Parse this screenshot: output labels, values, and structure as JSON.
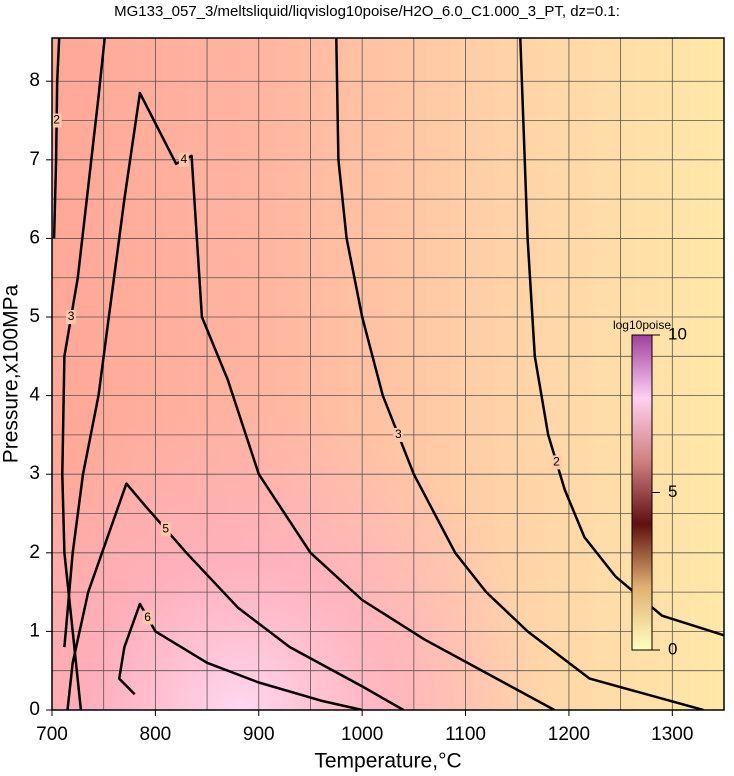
{
  "chart_data": {
    "type": "contour",
    "title": "MG133_057_3/meltsliquid/liqvislog10poise/H2O_6.0_C1.000_3_PT, dz=0.1:",
    "xlabel": "Temperature,°C",
    "ylabel": "Pressure,x100MPa",
    "xlim": [
      700,
      1350
    ],
    "ylim": [
      0,
      8.55
    ],
    "xticks": [
      700,
      800,
      900,
      1000,
      1100,
      1200,
      1300
    ],
    "yticks": [
      0,
      1,
      2,
      3,
      4,
      5,
      6,
      7,
      8
    ],
    "xminor": [
      750,
      850,
      950,
      1050,
      1150,
      1250
    ],
    "yminor": [
      0.5,
      1.5,
      2.5,
      3.5,
      4.5,
      5.5,
      6.5,
      7.5
    ],
    "grid": true,
    "line_color": "#000000",
    "contours": [
      {
        "level": 2,
        "x": [
          1153,
          1160,
          1167,
          1180,
          1196,
          1215,
          1245,
          1290,
          1350
        ],
        "y": [
          8.55,
          6,
          4.5,
          3.5,
          2.8,
          2.2,
          1.7,
          1.2,
          0.95
        ]
      },
      {
        "level": 3,
        "x": [
          975,
          977,
          985,
          1000,
          1020,
          1050,
          1090,
          1120,
          1160,
          1220,
          1330
        ],
        "y": [
          8.55,
          7,
          6,
          5,
          4,
          3,
          2,
          1.5,
          1,
          0.4,
          0
        ]
      },
      {
        "level": 3,
        "x": [
          751,
          745,
          738,
          725,
          712,
          710,
          712,
          720,
          728
        ],
        "y": [
          8.55,
          7.8,
          7,
          5.5,
          4.5,
          3,
          2,
          1,
          0
        ]
      },
      {
        "level": 2,
        "x": [
          707,
          705,
          704,
          702
        ],
        "y": [
          8.55,
          8,
          7,
          6
        ]
      },
      {
        "level": 4,
        "x": [
          712,
          720,
          730,
          745,
          760,
          770,
          785,
          820,
          835,
          845,
          870,
          900,
          950,
          1000,
          1060,
          1130,
          1186
        ],
        "y": [
          0.8,
          2,
          3,
          4,
          5.5,
          6.5,
          7.85,
          6.95,
          7.05,
          5,
          4.2,
          3,
          2,
          1.4,
          0.9,
          0.4,
          0
        ]
      },
      {
        "level": 5,
        "x": [
          715,
          720,
          735,
          772,
          790,
          830,
          880,
          930,
          1000,
          1040
        ],
        "y": [
          0,
          0.6,
          1.5,
          2.88,
          2.6,
          2,
          1.3,
          0.8,
          0.3,
          0
        ]
      },
      {
        "level": 6,
        "x": [
          780,
          765,
          770,
          785,
          800,
          850,
          900,
          960,
          1000
        ],
        "y": [
          0.2,
          0.4,
          0.8,
          1.35,
          1,
          0.6,
          0.35,
          0.12,
          0
        ]
      }
    ],
    "colorbar": {
      "label": "log10poise",
      "lim": [
        0,
        10
      ],
      "ticks": [
        0,
        5,
        10
      ]
    }
  }
}
